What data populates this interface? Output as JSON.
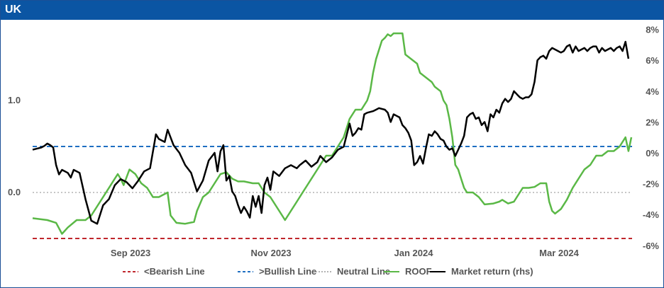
{
  "header": {
    "title": "UK"
  },
  "chart_data": {
    "type": "line",
    "title": "UK",
    "x_ticks": [
      "Sep 2023",
      "Nov 2023",
      "Jan 2024",
      "Mar 2024"
    ],
    "y_left": {
      "ticks": [
        "0.0",
        "1.0"
      ],
      "tick_values": [
        0,
        1
      ],
      "range": [
        -0.55,
        1.75
      ]
    },
    "y_right": {
      "ticks": [
        "-6%",
        "-4%",
        "-2%",
        "0%",
        "2%",
        "4%",
        "6%",
        "8%"
      ],
      "tick_values": [
        -6,
        -4,
        -2,
        0,
        2,
        4,
        6,
        8
      ],
      "range": [
        -6,
        8
      ]
    },
    "grid": false,
    "legend_position": "bottom",
    "reference_lines": [
      {
        "name": "<Bearish Line",
        "value": -0.5,
        "color": "#c0272d",
        "style": "dashed",
        "axis": "left"
      },
      {
        "name": ">Bullish Line",
        "value": 0.5,
        "color": "#1f6fc2",
        "style": "dashed",
        "axis": "left"
      },
      {
        "name": "Neutral Line",
        "value": 0.0,
        "color": "#b3b3b3",
        "style": "dotted",
        "axis": "left"
      }
    ],
    "series": [
      {
        "name": "ROOF",
        "axis": "left",
        "color": "#5ab846",
        "points": [
          [
            0,
            -0.28
          ],
          [
            5,
            -0.3
          ],
          [
            8,
            -0.33
          ],
          [
            10,
            -0.45
          ],
          [
            12,
            -0.38
          ],
          [
            15,
            -0.3
          ],
          [
            18,
            -0.3
          ],
          [
            20,
            -0.25
          ],
          [
            22,
            -0.15
          ],
          [
            24,
            -0.05
          ],
          [
            26,
            0.05
          ],
          [
            28,
            0.15
          ],
          [
            29,
            0.2
          ],
          [
            30,
            0.15
          ],
          [
            31,
            0.08
          ],
          [
            33,
            0.25
          ],
          [
            35,
            0.2
          ],
          [
            37,
            0.1
          ],
          [
            39,
            0.05
          ],
          [
            41,
            -0.05
          ],
          [
            43,
            -0.05
          ],
          [
            46,
            0.0
          ],
          [
            47,
            -0.25
          ],
          [
            49,
            -0.33
          ],
          [
            52,
            -0.34
          ],
          [
            55,
            -0.32
          ],
          [
            56,
            -0.2
          ],
          [
            58,
            -0.05
          ],
          [
            60,
            0.0
          ],
          [
            62,
            0.1
          ],
          [
            64,
            0.2
          ],
          [
            66,
            0.22
          ],
          [
            68,
            0.15
          ],
          [
            70,
            0.12
          ],
          [
            72,
            0.12
          ],
          [
            75,
            0.1
          ],
          [
            77,
            0.1
          ],
          [
            79,
            0.0
          ],
          [
            81,
            -0.05
          ],
          [
            83,
            -0.15
          ],
          [
            85,
            -0.25
          ],
          [
            86,
            -0.3
          ],
          [
            88,
            -0.2
          ],
          [
            90,
            -0.1
          ],
          [
            92,
            0.0
          ],
          [
            94,
            0.1
          ],
          [
            96,
            0.2
          ],
          [
            98,
            0.3
          ],
          [
            100,
            0.4
          ],
          [
            102,
            0.4
          ],
          [
            104,
            0.5
          ],
          [
            106,
            0.6
          ],
          [
            108,
            0.8
          ],
          [
            110,
            0.9
          ],
          [
            112,
            0.9
          ],
          [
            114,
            1.0
          ],
          [
            115,
            1.1
          ],
          [
            116,
            1.3
          ],
          [
            117,
            1.45
          ],
          [
            118,
            1.55
          ],
          [
            119,
            1.65
          ],
          [
            120,
            1.68
          ],
          [
            121,
            1.72
          ],
          [
            122,
            1.7
          ],
          [
            123,
            1.73
          ],
          [
            126,
            1.73
          ],
          [
            127,
            1.5
          ],
          [
            129,
            1.45
          ],
          [
            131,
            1.4
          ],
          [
            132,
            1.3
          ],
          [
            134,
            1.25
          ],
          [
            136,
            1.2
          ],
          [
            137,
            1.15
          ],
          [
            139,
            1.1
          ],
          [
            140,
            1.0
          ],
          [
            141,
            0.95
          ],
          [
            142,
            0.8
          ],
          [
            143,
            0.6
          ],
          [
            144,
            0.3
          ],
          [
            145,
            0.25
          ],
          [
            146,
            0.15
          ],
          [
            147,
            0.05
          ],
          [
            148,
            0.0
          ],
          [
            150,
            0.0
          ],
          [
            152,
            -0.05
          ],
          [
            154,
            -0.13
          ],
          [
            157,
            -0.12
          ],
          [
            159,
            -0.1
          ],
          [
            160,
            -0.08
          ],
          [
            162,
            -0.12
          ],
          [
            164,
            -0.1
          ],
          [
            165,
            -0.05
          ],
          [
            167,
            0.05
          ],
          [
            169,
            0.05
          ],
          [
            171,
            0.06
          ],
          [
            173,
            0.1
          ],
          [
            175,
            0.1
          ],
          [
            176,
            -0.1
          ],
          [
            177,
            -0.2
          ],
          [
            178,
            -0.23
          ],
          [
            180,
            -0.18
          ],
          [
            182,
            -0.08
          ],
          [
            184,
            0.05
          ],
          [
            186,
            0.15
          ],
          [
            188,
            0.25
          ],
          [
            190,
            0.3
          ],
          [
            192,
            0.4
          ],
          [
            194,
            0.4
          ],
          [
            196,
            0.45
          ],
          [
            198,
            0.45
          ],
          [
            200,
            0.5
          ],
          [
            202,
            0.6
          ],
          [
            203,
            0.45
          ],
          [
            204,
            0.6
          ]
        ]
      },
      {
        "name": "Market return (rhs)",
        "axis": "right",
        "color": "#000000",
        "points": [
          [
            0,
            0.2
          ],
          [
            3,
            0.35
          ],
          [
            4,
            0.45
          ],
          [
            5,
            0.6
          ],
          [
            6,
            0.5
          ],
          [
            7,
            0.35
          ],
          [
            8,
            -0.8
          ],
          [
            9,
            -1.4
          ],
          [
            10,
            -1.1
          ],
          [
            12,
            -1.3
          ],
          [
            13,
            -1.6
          ],
          [
            14,
            -1.1
          ],
          [
            16,
            -1.3
          ],
          [
            18,
            -3.0
          ],
          [
            20,
            -4.4
          ],
          [
            22,
            -4.6
          ],
          [
            24,
            -3.4
          ],
          [
            26,
            -3.0
          ],
          [
            28,
            -2.1
          ],
          [
            30,
            -1.7
          ],
          [
            32,
            -1.9
          ],
          [
            34,
            -2.3
          ],
          [
            36,
            -1.8
          ],
          [
            38,
            -1.2
          ],
          [
            40,
            -1.0
          ],
          [
            42,
            1.2
          ],
          [
            43,
            0.9
          ],
          [
            45,
            0.7
          ],
          [
            46,
            1.5
          ],
          [
            48,
            0.5
          ],
          [
            50,
            0.0
          ],
          [
            52,
            -0.8
          ],
          [
            54,
            -1.3
          ],
          [
            56,
            -2.5
          ],
          [
            58,
            -1.8
          ],
          [
            60,
            -0.5
          ],
          [
            62,
            0.0
          ],
          [
            63,
            -1.2
          ],
          [
            64,
            0.1
          ],
          [
            65,
            0.5
          ],
          [
            66,
            -1.8
          ],
          [
            67,
            -1.5
          ],
          [
            68,
            -2.5
          ],
          [
            69,
            -2.8
          ],
          [
            70,
            -3.4
          ],
          [
            71,
            -3.9
          ],
          [
            72,
            -3.5
          ],
          [
            73,
            -3.8
          ],
          [
            74,
            -4.2
          ],
          [
            75,
            -2.8
          ],
          [
            76,
            -3.5
          ],
          [
            77,
            -2.8
          ],
          [
            78,
            -3.9
          ],
          [
            79,
            -2.1
          ],
          [
            80,
            -1.6
          ],
          [
            81,
            -2.4
          ],
          [
            82,
            -1.2
          ],
          [
            84,
            -1.5
          ],
          [
            86,
            -1.0
          ],
          [
            88,
            -0.8
          ],
          [
            90,
            -1.0
          ],
          [
            91,
            -0.8
          ],
          [
            93,
            -0.5
          ],
          [
            95,
            -0.9
          ],
          [
            97,
            -0.6
          ],
          [
            98,
            -0.2
          ],
          [
            100,
            -0.6
          ],
          [
            102,
            -0.3
          ],
          [
            104,
            0.2
          ],
          [
            106,
            0.4
          ],
          [
            108,
            1.9
          ],
          [
            109,
            1.1
          ],
          [
            110,
            1.3
          ],
          [
            111,
            1.6
          ],
          [
            112,
            1.5
          ],
          [
            113,
            2.5
          ],
          [
            114,
            2.6
          ],
          [
            116,
            2.7
          ],
          [
            117,
            2.8
          ],
          [
            118,
            2.9
          ],
          [
            120,
            2.8
          ],
          [
            121,
            2.6
          ],
          [
            122,
            2.0
          ],
          [
            123,
            2.5
          ],
          [
            124,
            2.4
          ],
          [
            125,
            2.3
          ],
          [
            126,
            1.8
          ],
          [
            127,
            1.6
          ],
          [
            128,
            1.3
          ],
          [
            129,
            0.8
          ],
          [
            130,
            -0.8
          ],
          [
            131,
            -0.6
          ],
          [
            132,
            -0.2
          ],
          [
            133,
            -0.7
          ],
          [
            134,
            0.3
          ],
          [
            135,
            1.2
          ],
          [
            136,
            1.1
          ],
          [
            137,
            1.4
          ],
          [
            138,
            1.2
          ],
          [
            139,
            0.9
          ],
          [
            140,
            0.8
          ],
          [
            141,
            0.4
          ],
          [
            142,
            0.2
          ],
          [
            143,
            0.3
          ],
          [
            144,
            -0.2
          ],
          [
            145,
            0.2
          ],
          [
            146,
            0.6
          ],
          [
            147,
            1.1
          ],
          [
            148,
            2.3
          ],
          [
            149,
            2.5
          ],
          [
            150,
            2.6
          ],
          [
            151,
            2.2
          ],
          [
            152,
            2.3
          ],
          [
            153,
            1.8
          ],
          [
            154,
            2.0
          ],
          [
            155,
            1.4
          ],
          [
            156,
            2.5
          ],
          [
            157,
            2.3
          ],
          [
            158,
            2.8
          ],
          [
            159,
            2.6
          ],
          [
            160,
            3.2
          ],
          [
            161,
            3.5
          ],
          [
            162,
            3.3
          ],
          [
            163,
            3.5
          ],
          [
            164,
            4.0
          ],
          [
            165,
            3.8
          ],
          [
            166,
            3.6
          ],
          [
            167,
            3.5
          ],
          [
            168,
            3.6
          ],
          [
            169,
            3.6
          ],
          [
            170,
            3.8
          ],
          [
            171,
            4.6
          ],
          [
            172,
            6.0
          ],
          [
            173,
            6.2
          ],
          [
            174,
            6.3
          ],
          [
            175,
            6.1
          ],
          [
            176,
            6.6
          ],
          [
            177,
            6.8
          ],
          [
            178,
            6.7
          ],
          [
            179,
            6.6
          ],
          [
            180,
            6.5
          ],
          [
            181,
            6.6
          ],
          [
            182,
            6.9
          ],
          [
            183,
            7.0
          ],
          [
            184,
            6.5
          ],
          [
            185,
            6.9
          ],
          [
            186,
            6.6
          ],
          [
            187,
            6.7
          ],
          [
            188,
            6.8
          ],
          [
            189,
            6.6
          ],
          [
            190,
            6.8
          ],
          [
            191,
            6.9
          ],
          [
            192,
            6.9
          ],
          [
            193,
            6.5
          ],
          [
            194,
            6.8
          ],
          [
            195,
            6.6
          ],
          [
            196,
            6.7
          ],
          [
            197,
            6.8
          ],
          [
            198,
            6.6
          ],
          [
            199,
            6.8
          ],
          [
            200,
            6.9
          ],
          [
            201,
            6.6
          ],
          [
            202,
            7.2
          ],
          [
            203,
            6.1
          ]
        ]
      }
    ]
  },
  "legend": {
    "items": [
      {
        "label": "<Bearish Line",
        "color": "#c0272d",
        "style": "dashed"
      },
      {
        "label": ">Bullish Line",
        "color": "#1f6fc2",
        "style": "dashed"
      },
      {
        "label": "Neutral Line",
        "color": "#b3b3b3",
        "style": "dotted"
      },
      {
        "label": "ROOF",
        "color": "#5ab846",
        "style": "solid"
      },
      {
        "label": "Market return (rhs)",
        "color": "#000000",
        "style": "solid"
      }
    ]
  }
}
